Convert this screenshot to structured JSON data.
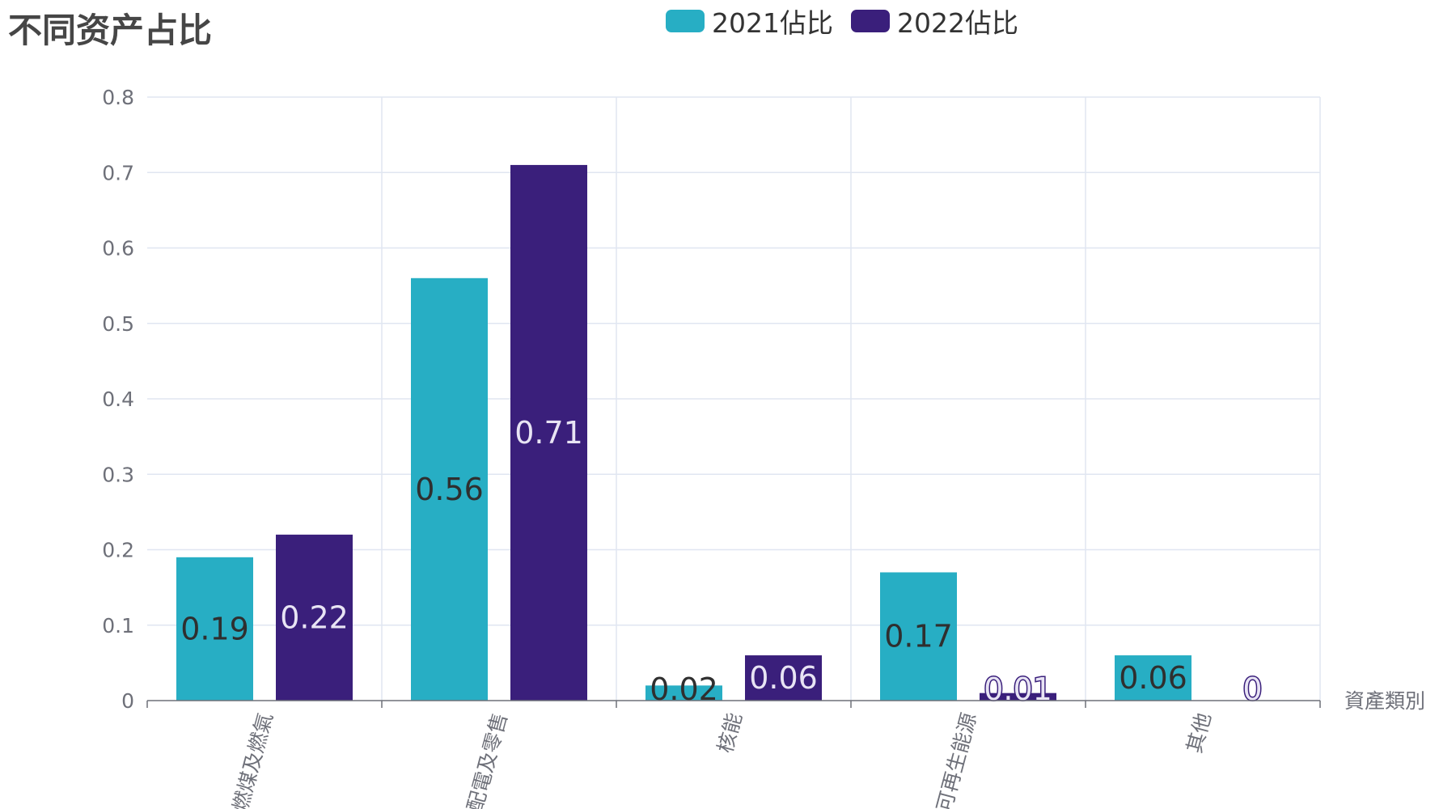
{
  "chart_data": {
    "type": "bar",
    "title": "不同资产占比",
    "xlabel": "資產類別",
    "ylabel": "",
    "categories": [
      "燃煤及燃氣",
      "配電及零售",
      "核能",
      "可再生能源",
      "其他"
    ],
    "series": [
      {
        "name": "2021佔比",
        "color": "#27AEC4",
        "values": [
          0.19,
          0.56,
          0.02,
          0.17,
          0.06
        ]
      },
      {
        "name": "2022佔比",
        "color": "#3A1F7B",
        "values": [
          0.22,
          0.71,
          0.06,
          0.01,
          0
        ]
      }
    ],
    "yticks": [
      "0",
      "0.1",
      "0.2",
      "0.3",
      "0.4",
      "0.5",
      "0.6",
      "0.7",
      "0.8"
    ],
    "ylim": [
      0,
      0.8
    ],
    "grid": true,
    "legend_position": "top-center"
  }
}
